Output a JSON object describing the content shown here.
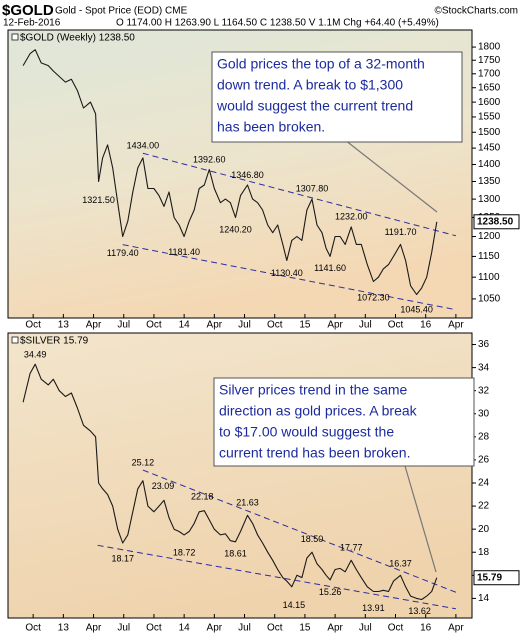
{
  "header": {
    "symbol": "$GOLD",
    "description": "Gold - Spot Price (EOD) CME",
    "source": "©StockCharts.com",
    "date": "12-Feb-2016",
    "quote": "O 1174.00 H 1263.90 L 1164.50 C 1238.50 V 1.1M Chg +64.40 (+5.49%)"
  },
  "chart_data": [
    {
      "type": "line",
      "log": true,
      "x": [
        8,
        8.7,
        9.2,
        9.8,
        10.5,
        11,
        11.6,
        12.2,
        12.8,
        13.4,
        14,
        14.7,
        15.2,
        15.5,
        15.9,
        16.4,
        16.9,
        17.4,
        17.9,
        18.4,
        18.9,
        19.4,
        19.9,
        20.4,
        21,
        21.5,
        22,
        22.5,
        23,
        23.5,
        24,
        24.5,
        25,
        25.5,
        26,
        26.5,
        27,
        27.6,
        28.1,
        28.6,
        29.1,
        29.6,
        30.3,
        30.8,
        31.3,
        31.8,
        32.3,
        32.8,
        33.3,
        33.8,
        34.2,
        34.7,
        35.2,
        35.7,
        36.2,
        36.7,
        37.2,
        37.7,
        38.1,
        38.5,
        39,
        39.5,
        40,
        40.6,
        41.1,
        41.6,
        42.2,
        42.8,
        43.3,
        43.8,
        44.3,
        44.8,
        45.5,
        46,
        46.5,
        47.1,
        47.6,
        48.1,
        48.6,
        49.1
      ],
      "series": [
        {
          "name": "$GOLD (Weekly) 1238.50",
          "color": "#1a1a1a",
          "values": [
            1730,
            1775,
            1790,
            1740,
            1730,
            1710,
            1690,
            1670,
            1680,
            1640,
            1580,
            1600,
            1560,
            1350,
            1420,
            1460,
            1390,
            1290,
            1200,
            1240,
            1320,
            1390,
            1420,
            1330,
            1330,
            1310,
            1280,
            1320,
            1250,
            1230,
            1200,
            1240,
            1270,
            1330,
            1340,
            1385,
            1330,
            1290,
            1300,
            1290,
            1250,
            1310,
            1340,
            1300,
            1290,
            1270,
            1230,
            1210,
            1230,
            1180,
            1140,
            1190,
            1200,
            1190,
            1270,
            1300,
            1230,
            1210,
            1170,
            1150,
            1200,
            1200,
            1180,
            1225,
            1180,
            1180,
            1130,
            1090,
            1100,
            1120,
            1130,
            1150,
            1180,
            1140,
            1080,
            1060,
            1075,
            1100,
            1160,
            1238.5
          ]
        }
      ],
      "xlim": [
        6.5,
        52.6
      ],
      "ylim": [
        1008,
        1867
      ],
      "xticks": [
        {
          "value": 9,
          "label": "Oct"
        },
        {
          "value": 12,
          "label": "13"
        },
        {
          "value": 15,
          "label": "Apr"
        },
        {
          "value": 18,
          "label": "Jul"
        },
        {
          "value": 21,
          "label": "Oct"
        },
        {
          "value": 24,
          "label": "14"
        },
        {
          "value": 27,
          "label": "Apr"
        },
        {
          "value": 30,
          "label": "Jul"
        },
        {
          "value": 33,
          "label": "Oct"
        },
        {
          "value": 36,
          "label": "15"
        },
        {
          "value": 39,
          "label": "Apr"
        },
        {
          "value": 42,
          "label": "Jul"
        },
        {
          "value": 45,
          "label": "Oct"
        },
        {
          "value": 48,
          "label": "16"
        },
        {
          "value": 51,
          "label": "Apr"
        }
      ],
      "yticks": [
        1050,
        1100,
        1150,
        1200,
        1250,
        1300,
        1350,
        1400,
        1450,
        1500,
        1550,
        1600,
        1650,
        1700,
        1750,
        1800
      ],
      "last": {
        "value": 1238.5,
        "label": "1238.50"
      },
      "trendlines": [
        [
          19.9,
          1434,
          51,
          1202
        ],
        [
          17.9,
          1179.4,
          51,
          1026
        ]
      ],
      "highs": [
        {
          "x": 19.9,
          "value": 1434,
          "label": "1434.00"
        },
        {
          "x": 26.5,
          "value": 1392.6,
          "label": "1392.60"
        },
        {
          "x": 30.3,
          "value": 1346.8,
          "label": "1346.80"
        },
        {
          "x": 36.7,
          "value": 1307.8,
          "label": "1307.80"
        },
        {
          "x": 40.6,
          "value": 1232,
          "label": "1232.00"
        },
        {
          "x": 45.5,
          "value": 1191.7,
          "label": "1191.70"
        }
      ],
      "lows": [
        {
          "x": 15.5,
          "value": 1321.5,
          "label": "1321.50"
        },
        {
          "x": 17.9,
          "value": 1179.4,
          "label": "1179.40"
        },
        {
          "x": 24,
          "value": 1181.4,
          "label": "1181.40"
        },
        {
          "x": 29.1,
          "value": 1240.2,
          "label": "1240.20"
        },
        {
          "x": 34.2,
          "value": 1130.4,
          "label": "1130.40"
        },
        {
          "x": 38.5,
          "value": 1141.6,
          "label": "1141.60"
        },
        {
          "x": 42.8,
          "value": 1072.3,
          "label": "1072.30"
        },
        {
          "x": 47.1,
          "value": 1045.4,
          "label": "1045.40"
        }
      ],
      "annotation": [
        "Gold prices the top of a 32-month",
        "down trend.  A break to $1,300",
        "would suggest the current trend",
        "has been broken."
      ]
    },
    {
      "type": "line",
      "log": false,
      "x": [
        8,
        8.7,
        9.2,
        9.8,
        10.5,
        11,
        11.6,
        12.2,
        12.8,
        13.4,
        14,
        14.7,
        15.2,
        15.5,
        15.9,
        16.4,
        16.9,
        17.4,
        17.9,
        18.4,
        18.9,
        19.4,
        19.9,
        20.4,
        21,
        21.5,
        22,
        22.5,
        23,
        23.5,
        24,
        24.5,
        25,
        25.5,
        26,
        26.5,
        27,
        27.6,
        28.1,
        28.6,
        29.1,
        29.6,
        30.3,
        30.8,
        31.3,
        31.8,
        32.3,
        32.8,
        33.3,
        33.8,
        34.2,
        34.7,
        35.2,
        35.7,
        36.2,
        36.7,
        37.2,
        37.7,
        38.1,
        38.5,
        39,
        39.5,
        40,
        40.6,
        41.1,
        41.6,
        42.2,
        42.8,
        43.3,
        43.8,
        44.3,
        44.8,
        45.5,
        46,
        46.5,
        47.1,
        47.6,
        48.1,
        48.6,
        49.1
      ],
      "series": [
        {
          "name": "$SILVER 15.79",
          "color": "#1a1a1a",
          "values": [
            31,
            33.5,
            34.3,
            33,
            32.5,
            33,
            32,
            31.5,
            31.8,
            30.5,
            29,
            28.5,
            28,
            24,
            23.5,
            23,
            22,
            20,
            18.8,
            19.5,
            21.5,
            23.5,
            24.2,
            22,
            21.5,
            22,
            22.5,
            21,
            20,
            19.8,
            19.5,
            19.8,
            20.5,
            21.5,
            21.6,
            20.8,
            20,
            19.5,
            19.6,
            19,
            18.9,
            19.8,
            21.2,
            20.5,
            19.5,
            18.8,
            18,
            17.3,
            16.5,
            15.8,
            15.5,
            15,
            16,
            15.8,
            17.5,
            18,
            17,
            16.5,
            16,
            15.6,
            16.5,
            16.6,
            16.3,
            17.3,
            16.5,
            15.8,
            15,
            14.6,
            14.6,
            14.7,
            14.6,
            15.5,
            16,
            15,
            14.2,
            14,
            13.9,
            14.2,
            14.6,
            15.79
          ]
        }
      ],
      "xlim": [
        6.5,
        52.6
      ],
      "ylim": [
        12.3,
        37.0
      ],
      "xticks": [
        {
          "value": 9,
          "label": "Oct"
        },
        {
          "value": 12,
          "label": "13"
        },
        {
          "value": 15,
          "label": "Apr"
        },
        {
          "value": 18,
          "label": "Jul"
        },
        {
          "value": 21,
          "label": "Oct"
        },
        {
          "value": 24,
          "label": "14"
        },
        {
          "value": 27,
          "label": "Apr"
        },
        {
          "value": 30,
          "label": "Jul"
        },
        {
          "value": 33,
          "label": "Oct"
        },
        {
          "value": 36,
          "label": "15"
        },
        {
          "value": 39,
          "label": "Apr"
        },
        {
          "value": 42,
          "label": "Jul"
        },
        {
          "value": 45,
          "label": "Oct"
        },
        {
          "value": 48,
          "label": "16"
        },
        {
          "value": 51,
          "label": "Apr"
        }
      ],
      "yticks": [
        14,
        16,
        18,
        20,
        22,
        24,
        26,
        28,
        30,
        32,
        34,
        36
      ],
      "last": 15.79,
      "trendlines": [
        [
          19.9,
          25.12,
          51,
          14.53
        ],
        [
          15.4,
          18.6,
          51,
          13.1
        ]
      ],
      "highs": [
        {
          "x": 9.2,
          "value": 34.49
        },
        {
          "x": 19.9,
          "value": 25.12
        },
        {
          "x": 21.9,
          "value": 23.09
        },
        {
          "x": 25.8,
          "value": 22.18
        },
        {
          "x": 30.3,
          "value": 21.63
        },
        {
          "x": 36.7,
          "value": 18.5,
          "label": "18.50"
        },
        {
          "x": 40.6,
          "value": 17.77
        },
        {
          "x": 45.5,
          "value": 16.37
        }
      ],
      "lows": [
        {
          "x": 17.9,
          "value": 18.17
        },
        {
          "x": 24,
          "value": 18.72
        },
        {
          "x": 29.1,
          "value": 18.61
        },
        {
          "x": 34.9,
          "value": 14.15
        },
        {
          "x": 38.5,
          "value": 15.26
        },
        {
          "x": 42.8,
          "value": 13.91
        },
        {
          "x": 47.4,
          "value": 13.62
        }
      ],
      "annotation": [
        "Silver prices trend in the same",
        "direction as gold prices. A break",
        "to $17.00 would suggest the",
        "current trend has been broken."
      ]
    }
  ]
}
